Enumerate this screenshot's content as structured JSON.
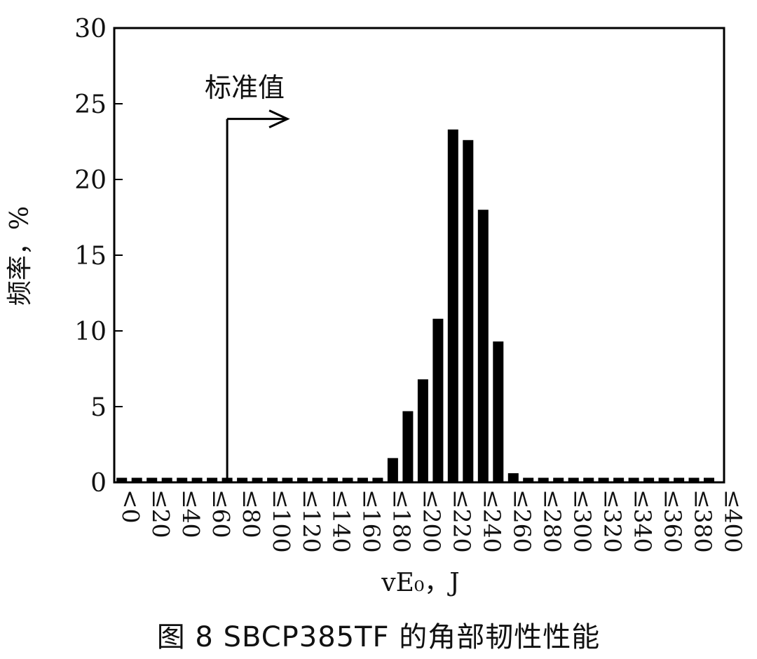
{
  "caption": "图 8 SBCP385TF 的角部韧性性能",
  "annotation": "标准值",
  "chart_data": {
    "type": "bar",
    "title": "",
    "xlabel": "vE₀，J",
    "ylabel": "频率，%",
    "ylim": [
      0,
      30
    ],
    "yticks": [
      0,
      5,
      10,
      15,
      20,
      25,
      30
    ],
    "grid": false,
    "legend": "none",
    "categories": [
      "<0",
      "≤20",
      "≤40",
      "≤60",
      "≤80",
      "≤100",
      "≤120",
      "≤140",
      "≤160",
      "≤180",
      "≤200",
      "≤220",
      "≤240",
      "≤260",
      "≤280",
      "≤300",
      "≤320",
      "≤340",
      "≤360",
      "≤380",
      "≤400"
    ],
    "bars": [
      {
        "x": 0,
        "value": 0.3
      },
      {
        "x": 10,
        "value": 0.3
      },
      {
        "x": 20,
        "value": 0.3
      },
      {
        "x": 30,
        "value": 0.3
      },
      {
        "x": 40,
        "value": 0.3
      },
      {
        "x": 50,
        "value": 0.3
      },
      {
        "x": 60,
        "value": 0.3
      },
      {
        "x": 70,
        "value": 0.3
      },
      {
        "x": 80,
        "value": 0.3
      },
      {
        "x": 90,
        "value": 0.3
      },
      {
        "x": 100,
        "value": 0.3
      },
      {
        "x": 110,
        "value": 0.3
      },
      {
        "x": 120,
        "value": 0.3
      },
      {
        "x": 130,
        "value": 0.3
      },
      {
        "x": 140,
        "value": 0.3
      },
      {
        "x": 150,
        "value": 0.3
      },
      {
        "x": 160,
        "value": 0.3
      },
      {
        "x": 170,
        "value": 0.3
      },
      {
        "x": 180,
        "value": 1.6
      },
      {
        "x": 190,
        "value": 4.7
      },
      {
        "x": 200,
        "value": 6.8
      },
      {
        "x": 210,
        "value": 10.8
      },
      {
        "x": 220,
        "value": 23.3
      },
      {
        "x": 230,
        "value": 22.6
      },
      {
        "x": 240,
        "value": 18.0
      },
      {
        "x": 250,
        "value": 9.3
      },
      {
        "x": 260,
        "value": 0.6
      },
      {
        "x": 270,
        "value": 0.3
      },
      {
        "x": 280,
        "value": 0.3
      },
      {
        "x": 290,
        "value": 0.3
      },
      {
        "x": 300,
        "value": 0.3
      },
      {
        "x": 310,
        "value": 0.3
      },
      {
        "x": 320,
        "value": 0.3
      },
      {
        "x": 330,
        "value": 0.3
      },
      {
        "x": 340,
        "value": 0.3
      },
      {
        "x": 350,
        "value": 0.3
      },
      {
        "x": 360,
        "value": 0.3
      },
      {
        "x": 370,
        "value": 0.3
      },
      {
        "x": 380,
        "value": 0.3
      },
      {
        "x": 390,
        "value": 0.3
      }
    ],
    "reference_line": {
      "label": "标准值",
      "x": 70,
      "y": 24
    }
  }
}
